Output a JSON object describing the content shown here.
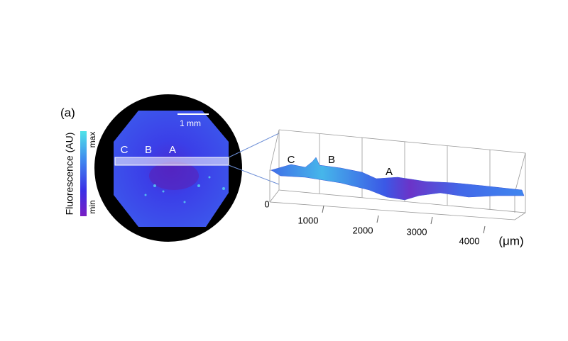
{
  "panel_label": "(a)",
  "colorbar": {
    "title": "Fluorescence (AU)",
    "max": "max",
    "min": "min"
  },
  "scale_bar": "1 mm",
  "image_labels": [
    "C",
    "B",
    "A"
  ],
  "surface_labels": [
    "C",
    "B",
    "A"
  ],
  "axis": {
    "ticks": [
      0,
      1000,
      2000,
      3000,
      4000
    ],
    "unit": "(μm)"
  }
}
